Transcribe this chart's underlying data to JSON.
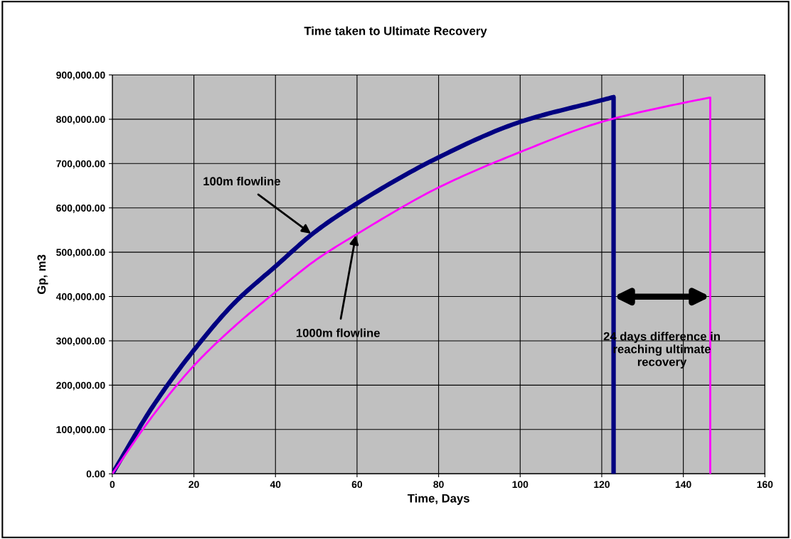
{
  "chart_data": {
    "type": "line",
    "title": "Time taken to Ultimate Recovery",
    "xlabel": "Time, Days",
    "ylabel": "Gp, m3",
    "series": [
      {
        "color": "#000080",
        "x": [
          0,
          10,
          20,
          30,
          40,
          50,
          60,
          80,
          100,
          120,
          122.9,
          122.9
        ],
        "values": [
          0,
          153000,
          279000,
          386000,
          468000,
          548000,
          610000,
          714000,
          794000,
          843000,
          850000,
          0
        ]
      },
      {
        "color": "#ff00ff",
        "x": [
          0,
          10,
          20,
          30,
          40,
          50,
          60,
          80,
          100,
          120,
          140,
          146.6,
          146.6
        ],
        "values": [
          0,
          132000,
          244000,
          333000,
          410000,
          483000,
          541000,
          646000,
          726000,
          794000,
          837000,
          849000,
          0
        ]
      }
    ],
    "xlim": [
      0,
      160
    ],
    "xticks": [
      0,
      20,
      40,
      60,
      80,
      100,
      120,
      140,
      160
    ],
    "ylim": [
      0,
      900000
    ],
    "yticks": [
      {
        "value": 0,
        "label": "0.00"
      },
      {
        "value": 100000,
        "label": "100,000.00"
      },
      {
        "value": 200000,
        "label": "200,000.00"
      },
      {
        "value": 300000,
        "label": "300,000.00"
      },
      {
        "value": 400000,
        "label": "400,000.00"
      },
      {
        "value": 500000,
        "label": "500,000.00"
      },
      {
        "value": 600000,
        "label": "600,000.00"
      },
      {
        "value": 700000,
        "label": "700,000.00"
      },
      {
        "value": 800000,
        "label": "800,000.00"
      },
      {
        "value": 900000,
        "label": "900,000.00"
      }
    ],
    "grid": true,
    "legend": false,
    "marker": "none",
    "line_style": "solid",
    "annotations": [
      {
        "text": "100m flowline",
        "x": 48.7,
        "y": 542000
      },
      {
        "text": "1000m flowline",
        "x": 59.7,
        "y": 538000
      },
      "24 days difference in\nreaching ultimate\nrecovery"
    ]
  }
}
